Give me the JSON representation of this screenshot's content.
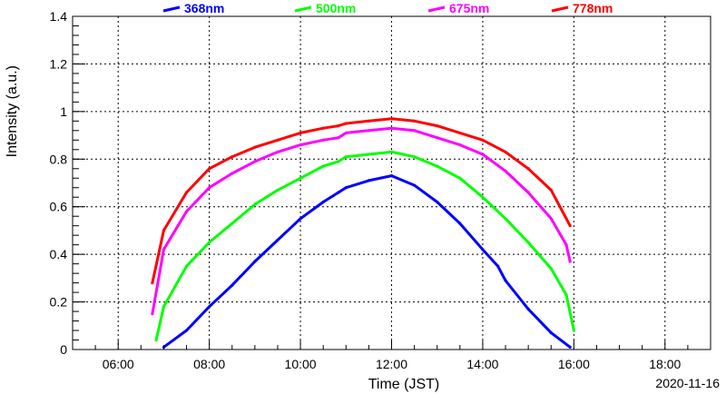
{
  "chart_data": {
    "type": "scatter",
    "xlabel": "Time (JST)",
    "ylabel": "Intensity (a.u.)",
    "date_label": "2020-11-16",
    "xlim": [
      "05:00",
      "19:00"
    ],
    "ylim": [
      0,
      1.4
    ],
    "grid": true,
    "legend": "top",
    "x_ticks": [
      "06:00",
      "08:00",
      "10:00",
      "12:00",
      "14:00",
      "16:00",
      "18:00"
    ],
    "y_ticks": [
      "0",
      "0.2",
      "0.4",
      "0.6",
      "0.8",
      "1",
      "1.2",
      "1.4"
    ],
    "series": [
      {
        "name": "368nm",
        "color": "#0000ff",
        "x": [
          "07:00",
          "07:30",
          "08:00",
          "08:30",
          "09:00",
          "09:30",
          "10:00",
          "10:30",
          "10:50",
          "11:00",
          "11:30",
          "12:00",
          "12:30",
          "13:00",
          "13:30",
          "14:00",
          "14:20",
          "14:30",
          "15:00",
          "15:30",
          "15:55"
        ],
        "y": [
          0.01,
          0.08,
          0.18,
          0.27,
          0.37,
          0.46,
          0.55,
          0.62,
          0.66,
          0.68,
          0.71,
          0.73,
          0.69,
          0.62,
          0.53,
          0.42,
          0.35,
          0.29,
          0.17,
          0.07,
          0.01
        ]
      },
      {
        "name": "500nm",
        "color": "#00ff00",
        "x": [
          "06:50",
          "07:00",
          "07:30",
          "08:00",
          "08:30",
          "09:00",
          "09:30",
          "10:00",
          "10:30",
          "10:50",
          "11:00",
          "11:30",
          "12:00",
          "12:30",
          "13:00",
          "13:30",
          "14:00",
          "14:30",
          "15:00",
          "15:30",
          "15:50",
          "16:00"
        ],
        "y": [
          0.04,
          0.18,
          0.35,
          0.45,
          0.53,
          0.61,
          0.67,
          0.72,
          0.77,
          0.79,
          0.81,
          0.82,
          0.83,
          0.81,
          0.77,
          0.72,
          0.64,
          0.55,
          0.45,
          0.34,
          0.23,
          0.08
        ]
      },
      {
        "name": "675nm",
        "color": "#ff00ff",
        "x": [
          "06:45",
          "07:00",
          "07:30",
          "08:00",
          "08:30",
          "09:00",
          "09:30",
          "10:00",
          "10:30",
          "10:50",
          "11:00",
          "11:30",
          "12:00",
          "12:30",
          "13:00",
          "13:30",
          "14:00",
          "14:30",
          "15:00",
          "15:30",
          "15:50",
          "15:55"
        ],
        "y": [
          0.15,
          0.42,
          0.58,
          0.68,
          0.74,
          0.79,
          0.83,
          0.86,
          0.88,
          0.89,
          0.91,
          0.92,
          0.93,
          0.92,
          0.89,
          0.86,
          0.82,
          0.75,
          0.66,
          0.55,
          0.44,
          0.37
        ]
      },
      {
        "name": "778nm",
        "color": "#ff0000",
        "x": [
          "06:45",
          "07:00",
          "07:30",
          "08:00",
          "08:30",
          "09:00",
          "09:30",
          "10:00",
          "10:30",
          "10:50",
          "11:00",
          "11:30",
          "12:00",
          "12:30",
          "13:00",
          "13:30",
          "14:00",
          "14:30",
          "15:00",
          "15:30",
          "15:55"
        ],
        "y": [
          0.28,
          0.5,
          0.66,
          0.76,
          0.81,
          0.85,
          0.88,
          0.91,
          0.93,
          0.94,
          0.95,
          0.96,
          0.97,
          0.96,
          0.94,
          0.91,
          0.88,
          0.83,
          0.76,
          0.67,
          0.52
        ]
      }
    ]
  }
}
